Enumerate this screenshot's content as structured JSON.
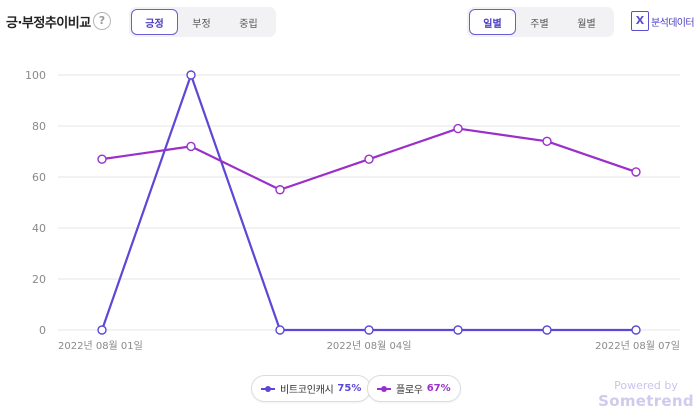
{
  "header": {
    "title": "긍·부정추이비교",
    "help_glyph": "?",
    "sentiment_tabs": [
      "긍정",
      "부정",
      "중립"
    ],
    "sentiment_active": 0,
    "period_tabs": [
      "일별",
      "주별",
      "월별"
    ],
    "period_active": 0,
    "export_glyph": "X",
    "export_label": "분석데이터"
  },
  "chart_data": {
    "type": "line",
    "x": [
      "2022년 08월 01일",
      "2022년 08월 02일",
      "2022년 08월 03일",
      "2022년 08월 04일",
      "2022년 08월 05일",
      "2022년 08월 06일",
      "2022년 08월 07일"
    ],
    "x_tick_labels": [
      "2022년 08월 01일",
      "",
      "",
      "2022년 08월 04일",
      "",
      "",
      "2022년 08월 07일"
    ],
    "ylim": [
      0,
      100
    ],
    "yticks": [
      0,
      20,
      40,
      60,
      80,
      100
    ],
    "grid": true,
    "legend_position": "bottom-center",
    "series": [
      {
        "name": "비트코인캐시",
        "color": "#5b48d6",
        "values": [
          0,
          100,
          0,
          0,
          0,
          0,
          0
        ]
      },
      {
        "name": "플로우",
        "color": "#9a2fc9",
        "values": [
          67,
          72,
          55,
          67,
          79,
          74,
          62
        ]
      }
    ]
  },
  "legend": [
    {
      "name": "비트코인캐시",
      "percent": "75%",
      "color": "#5b48d6"
    },
    {
      "name": "플로우",
      "percent": "67%",
      "color": "#9a2fc9"
    }
  ],
  "branding": {
    "line1": "Powered by",
    "line2": "Sometrend"
  }
}
